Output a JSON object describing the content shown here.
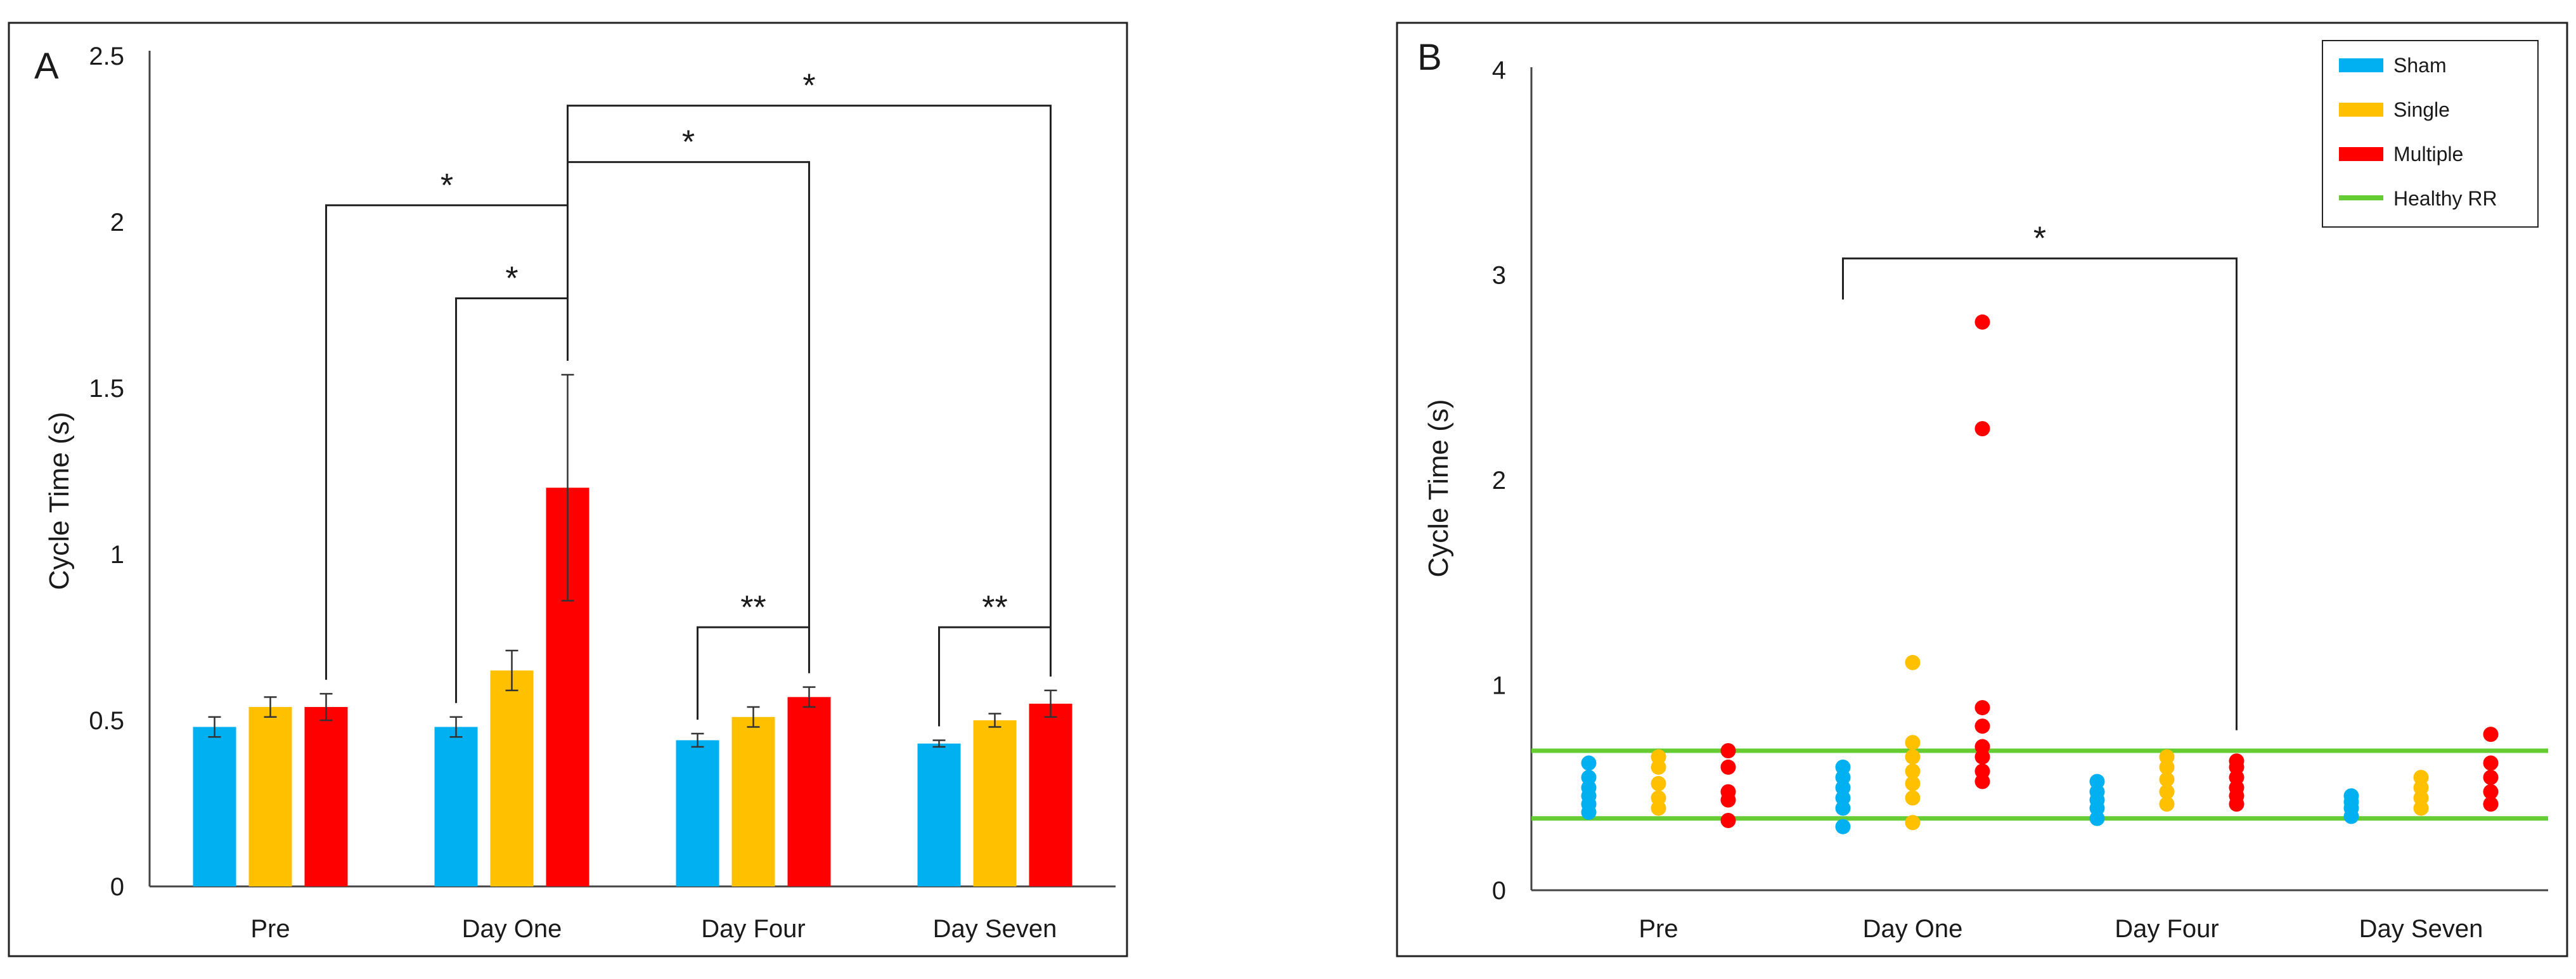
{
  "colors": {
    "sham": "#00B0F0",
    "single": "#FFC000",
    "multiple": "#FF0000",
    "healthy": "#66CC33",
    "axis": "#222222"
  },
  "chart_data": [
    {
      "panel": "A",
      "type": "bar",
      "ylabel": "Cycle Time (s)",
      "xlabel": "",
      "ylim": [
        0,
        2.5
      ],
      "yticks": [
        "0",
        "0.5",
        "1",
        "1.5",
        "2",
        "2.5"
      ],
      "categories": [
        "Pre",
        "Day One",
        "Day Four",
        "Day Seven"
      ],
      "series": [
        {
          "name": "Sham",
          "color": "#00B0F0",
          "values": [
            0.48,
            0.48,
            0.44,
            0.43
          ],
          "errors": [
            0.03,
            0.03,
            0.02,
            0.01
          ]
        },
        {
          "name": "Single",
          "color": "#FFC000",
          "values": [
            0.54,
            0.65,
            0.51,
            0.5
          ],
          "errors": [
            0.03,
            0.06,
            0.03,
            0.02
          ]
        },
        {
          "name": "Multiple",
          "color": "#FF0000",
          "values": [
            0.54,
            1.2,
            0.57,
            0.55
          ],
          "errors": [
            0.04,
            0.34,
            0.03,
            0.04
          ]
        }
      ],
      "significance": [
        {
          "label": "*",
          "from": "Pre-Multiple",
          "to": "Day One-Multiple"
        },
        {
          "label": "*",
          "from": "Day One-Sham",
          "to": "Day One-Multiple"
        },
        {
          "label": "*",
          "from": "Day One-Multiple",
          "to": "Day Four-Multiple"
        },
        {
          "label": "*",
          "from": "Day One-Multiple",
          "to": "Day Seven-Multiple"
        },
        {
          "label": "**",
          "from": "Day Four-Sham",
          "to": "Day Four-Multiple"
        },
        {
          "label": "**",
          "from": "Day Seven-Sham",
          "to": "Day Seven-Multiple"
        }
      ]
    },
    {
      "panel": "B",
      "type": "scatter",
      "ylabel": "Cycle Time (s)",
      "xlabel": "",
      "ylim": [
        0,
        4
      ],
      "yticks": [
        "0",
        "1",
        "2",
        "3",
        "4"
      ],
      "categories": [
        "Pre",
        "Day One",
        "Day Four",
        "Day Seven"
      ],
      "series": [
        {
          "name": "Sham",
          "color": "#00B0F0",
          "points": [
            [
              0.38,
              0.42,
              0.46,
              0.5,
              0.55,
              0.62
            ],
            [
              0.31,
              0.4,
              0.45,
              0.5,
              0.55,
              0.6
            ],
            [
              0.35,
              0.4,
              0.44,
              0.48,
              0.53
            ],
            [
              0.36,
              0.4,
              0.43,
              0.46
            ]
          ]
        },
        {
          "name": "Single",
          "color": "#FFC000",
          "points": [
            [
              0.4,
              0.45,
              0.52,
              0.6,
              0.65
            ],
            [
              0.33,
              0.45,
              0.52,
              0.58,
              0.65,
              0.72,
              1.11
            ],
            [
              0.42,
              0.48,
              0.54,
              0.6,
              0.65
            ],
            [
              0.4,
              0.45,
              0.5,
              0.55
            ]
          ]
        },
        {
          "name": "Multiple",
          "color": "#FF0000",
          "points": [
            [
              0.34,
              0.44,
              0.48,
              0.6,
              0.68
            ],
            [
              0.53,
              0.58,
              0.65,
              0.7,
              0.8,
              0.89,
              2.25,
              2.77
            ],
            [
              0.42,
              0.46,
              0.5,
              0.55,
              0.6,
              0.63
            ],
            [
              0.42,
              0.48,
              0.55,
              0.62,
              0.76
            ]
          ]
        }
      ],
      "reference_lines": [
        {
          "name": "Healthy RR",
          "color": "#66CC33",
          "values": [
            0.35,
            0.68
          ]
        }
      ],
      "significance": [
        {
          "label": "*",
          "from": "Day One-Sham",
          "to": "Day Four-Multiple"
        }
      ],
      "legend": {
        "placement": "top-right",
        "entries": [
          "Sham",
          "Single",
          "Multiple",
          "Healthy RR"
        ]
      }
    }
  ]
}
